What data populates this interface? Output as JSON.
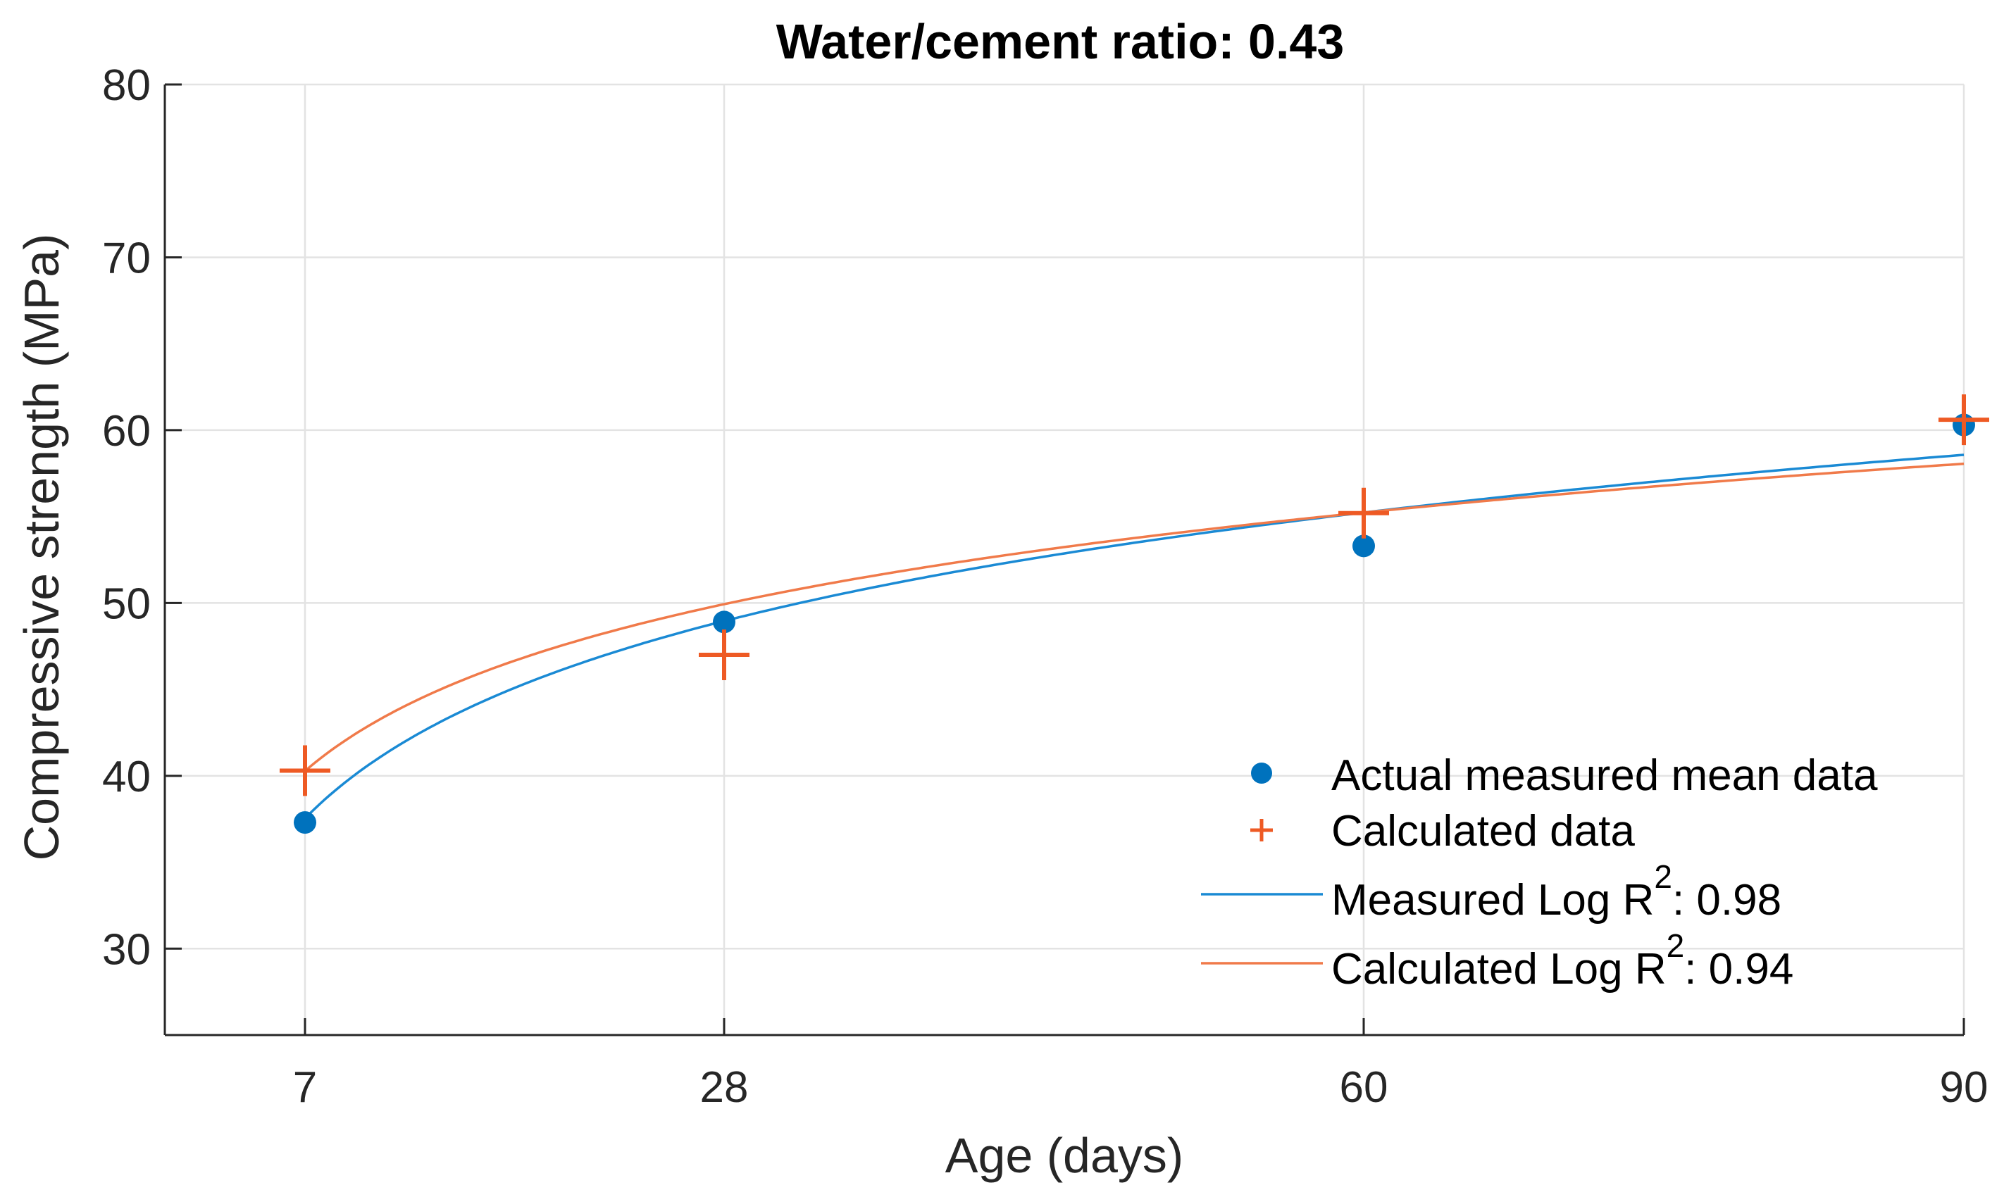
{
  "chart_data": {
    "type": "scatter",
    "title": "Water/cement ratio: 0.43",
    "xlabel": "Age (days)",
    "ylabel": "Compressive strength (MPa)",
    "x_ticks": [
      7,
      28,
      60,
      90
    ],
    "y_ticks": [
      30,
      40,
      50,
      60,
      70,
      80
    ],
    "ylim": [
      25,
      80
    ],
    "grid": true,
    "legend_position": "bottom-right",
    "series": [
      {
        "name": "Actual measured mean data",
        "kind": "markers",
        "marker": "filled-circle",
        "color": "#0072BD",
        "x": [
          7,
          28,
          60,
          90
        ],
        "y": [
          37.3,
          48.9,
          53.3,
          60.3
        ]
      },
      {
        "name": "Calculated data",
        "kind": "markers",
        "marker": "plus",
        "color": "#EE5A24",
        "x": [
          7,
          28,
          60,
          90
        ],
        "y": [
          40.3,
          47.0,
          55.2,
          60.6
        ]
      },
      {
        "name": "Measured Log R",
        "r2_label": "2",
        "r2_value": ": 0.98",
        "kind": "line",
        "color": "#1A8AD4",
        "x": [
          7,
          28,
          60,
          90
        ],
        "y": [
          37.6,
          48.8,
          55.3,
          58.6
        ]
      },
      {
        "name": "Calculated Log R",
        "r2_label": "2",
        "r2_value": ": 0.94",
        "kind": "line",
        "color": "#F07A4A",
        "x": [
          7,
          28,
          60,
          90
        ],
        "y": [
          40.3,
          49.9,
          55.2,
          58.1
        ]
      }
    ]
  }
}
